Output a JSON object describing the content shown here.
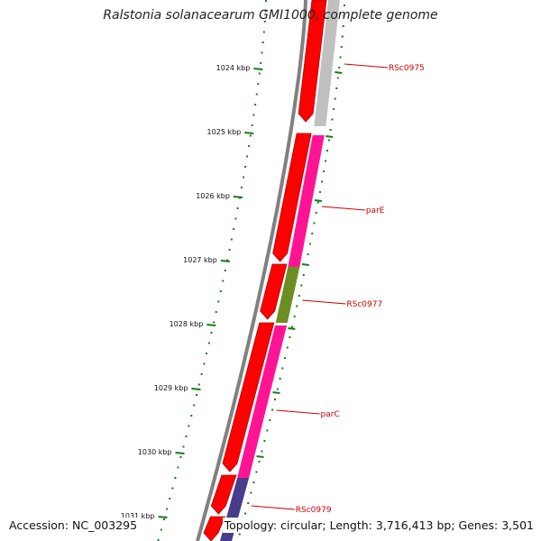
{
  "title": "Ralstonia solanacearum GMI1000, complete genome",
  "accession": "Accession: NC_003295",
  "topology": "Topology: circular; Length: 3,716,413 bp; Genes: 3,501",
  "colors": {
    "backbone": "#808080",
    "forward_strand": "#ff0000",
    "reverse_default": "#ff1493",
    "tick_color": "#1a7a1a",
    "label_color": "#cc0000"
  },
  "ticks": [
    "1024 kbp",
    "1025 kbp",
    "1026 kbp",
    "1027 kbp",
    "1028 kbp",
    "1029 kbp",
    "1030 kbp",
    "1031 kbp"
  ],
  "gene_labels": [
    {
      "name": "RSc0975",
      "color": "#c0c0c0"
    },
    {
      "name": "parE",
      "color": "#ff1493"
    },
    {
      "name": "RSc0977",
      "color": "#6b8e23"
    },
    {
      "name": "parC",
      "color": "#ff1493"
    },
    {
      "name": "RSc0979",
      "color": "#483d8b"
    }
  ]
}
